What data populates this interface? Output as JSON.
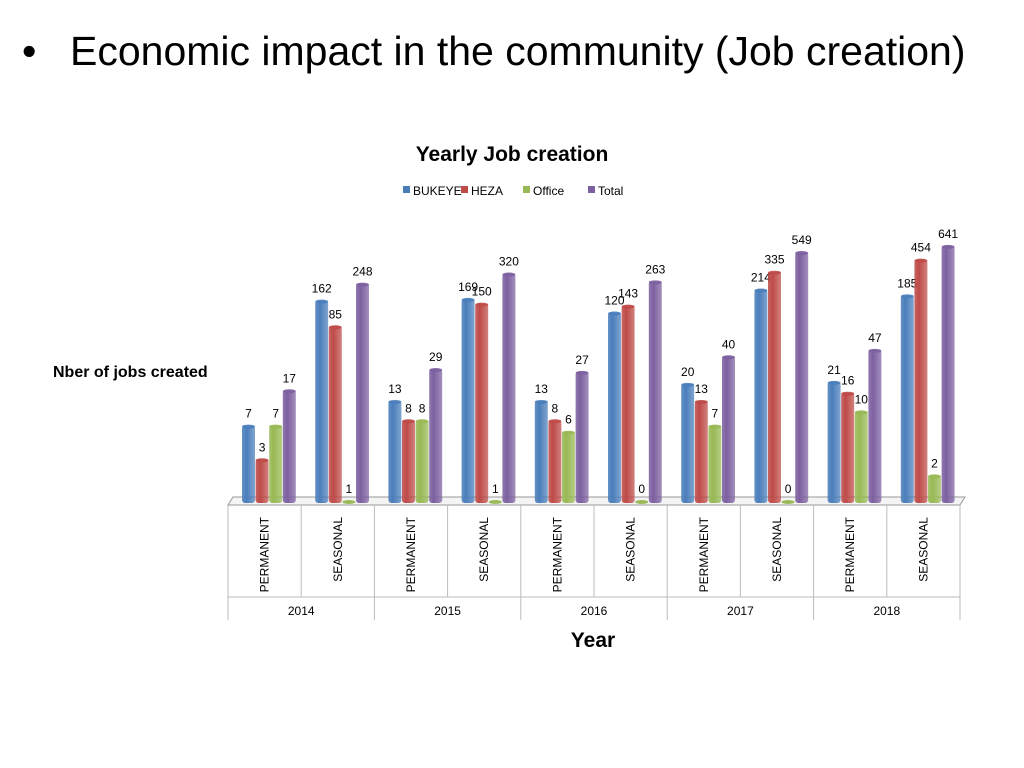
{
  "slide": {
    "bullet": "•",
    "title": "Economic impact in the community (Job creation)"
  },
  "chart_data": {
    "type": "bar",
    "title": "Yearly Job creation",
    "xlabel": "Year",
    "ylabel": "Nber of jobs created",
    "yscale": "log",
    "ylim": [
      1,
      1000
    ],
    "grid": false,
    "legend_position": "top",
    "groups": [
      "2014",
      "2015",
      "2016",
      "2017",
      "2018"
    ],
    "categories": [
      "PERMANENT",
      "SEASONAL",
      "PERMANENT",
      "SEASONAL",
      "PERMANENT",
      "SEASONAL",
      "PERMANENT",
      "SEASONAL",
      "PERMANENT",
      "SEASONAL"
    ],
    "series": [
      {
        "name": "BUKEYE",
        "color": "#4a7ebb",
        "values": [
          7,
          162,
          13,
          169,
          13,
          120,
          20,
          214,
          21,
          185
        ]
      },
      {
        "name": "HEZA",
        "color": "#be4b48",
        "values": [
          3,
          85,
          8,
          150,
          8,
          143,
          13,
          335,
          16,
          454
        ]
      },
      {
        "name": "Office",
        "color": "#98b954",
        "values": [
          7,
          1,
          8,
          1,
          6,
          0,
          7,
          0,
          10,
          2
        ]
      },
      {
        "name": "Total",
        "color": "#7d60a0",
        "values": [
          17,
          248,
          29,
          320,
          27,
          263,
          40,
          549,
          47,
          641
        ]
      }
    ]
  }
}
